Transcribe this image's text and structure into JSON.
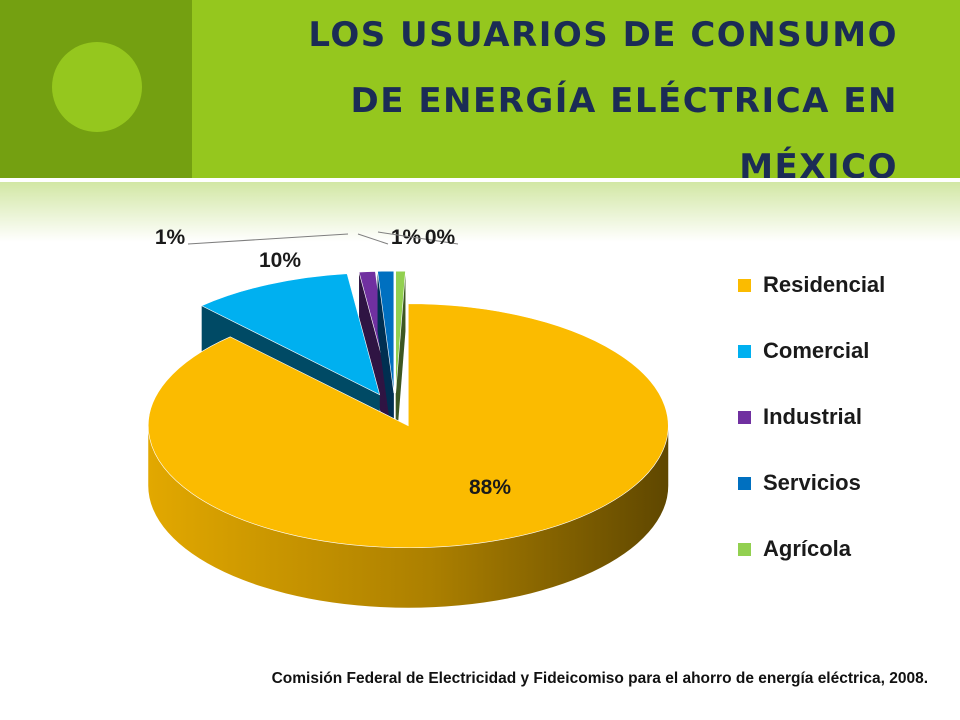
{
  "slide": {
    "title_lines": [
      "LOS USUARIOS DE CONSUMO",
      "DE ENERGÍA ELÉCTRICA EN",
      "MÉXICO"
    ],
    "source": "Comisión Federal de Electricidad y Fideicomiso para el ahorro de energía eléctrica, 2008."
  },
  "colors": {
    "header_green": "#95c71e",
    "header_dark_green": "#74a011",
    "title_navy": "#1b2c55"
  },
  "chart_data": {
    "type": "pie",
    "style": "3d-exploded",
    "legend_position": "right",
    "categories": [
      "Residencial",
      "Comercial",
      "Industrial",
      "Servicios",
      "Agrícola"
    ],
    "values": [
      88,
      10,
      1,
      1,
      0
    ],
    "data_labels": [
      "88%",
      "10%",
      "1%",
      "1%",
      "0%"
    ],
    "colors": [
      "#fbbb00",
      "#00b0f0",
      "#7030a0",
      "#0070c0",
      "#92d050"
    ]
  }
}
